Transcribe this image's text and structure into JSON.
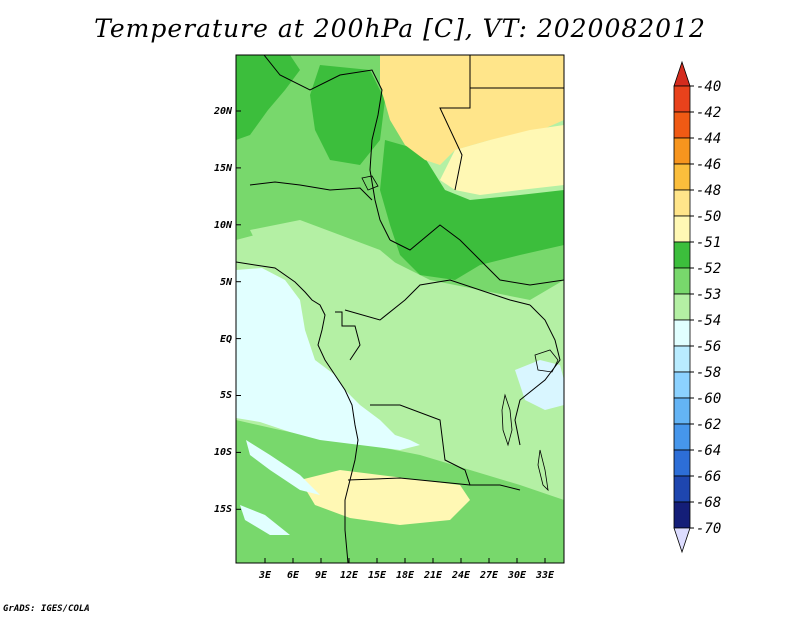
{
  "title": "Temperature at 200hPa [C], VT: 2020082012",
  "credit": "GrADS: IGES/COLA",
  "map": {
    "lat_ticks": [
      "20N",
      "15N",
      "10N",
      "5N",
      "EQ",
      "5S",
      "10S",
      "15S"
    ],
    "lon_ticks": [
      "3E",
      "6E",
      "9E",
      "12E",
      "15E",
      "18E",
      "21E",
      "24E",
      "27E",
      "30E",
      "33E"
    ]
  },
  "colorbar": {
    "levels": [
      "-40",
      "-42",
      "-44",
      "-46",
      "-48",
      "-50",
      "-51",
      "-52",
      "-53",
      "-54",
      "-56",
      "-58",
      "-60",
      "-62",
      "-64",
      "-66",
      "-68",
      "-70"
    ],
    "colors": {
      "top_triangle": "#d42c1e",
      "boxes": [
        "#e8421c",
        "#f05a14",
        "#f7951e",
        "#fbbe3c",
        "#ffe58a",
        "#fff8b4",
        "#3cbe3c",
        "#78d86c",
        "#b4f0a4",
        "#e1ffff",
        "#b9ecff",
        "#8cd2ff",
        "#64b4f5",
        "#4696eb",
        "#2d6ed7",
        "#1e46af",
        "#141e78"
      ],
      "bottom_triangle": "#dcdcff"
    }
  },
  "fill_colors": {
    "ocean": "#e1ffff",
    "pale_blue": "#d9f6ff",
    "light_green": "#b4f0a4",
    "mid_green": "#78d86c",
    "dark_green": "#3cbe3c",
    "pale_yellow": "#fff8b4",
    "yellow": "#ffe58a"
  }
}
